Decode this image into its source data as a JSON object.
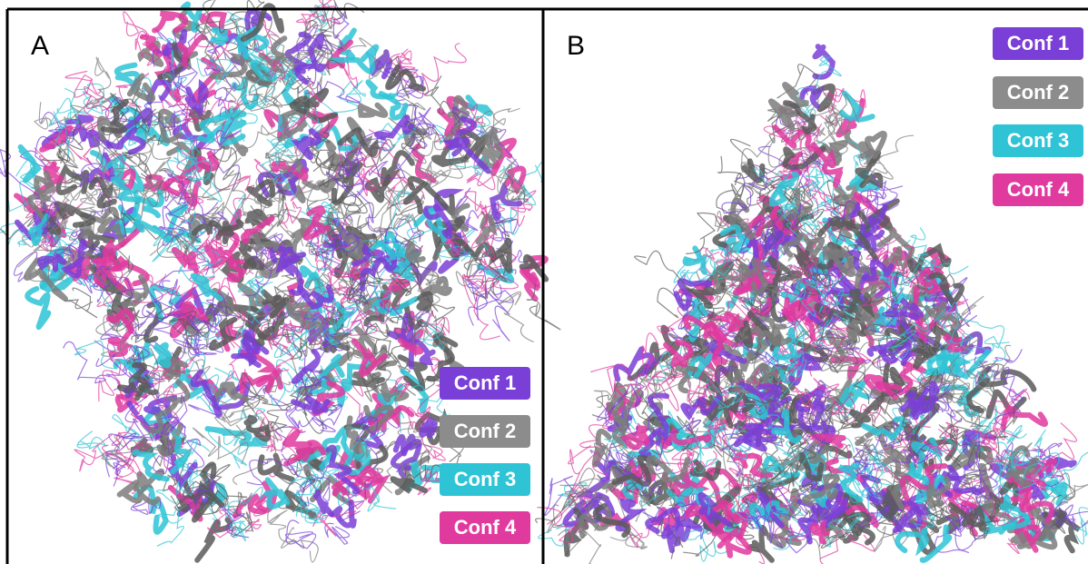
{
  "panels": [
    {
      "label": "A",
      "legend": [
        "Conf 1",
        "Conf 2",
        "Conf 3",
        "Conf 4"
      ]
    },
    {
      "label": "B",
      "legend": [
        "Conf 1",
        "Conf 2",
        "Conf 3",
        "Conf 4"
      ]
    }
  ]
}
